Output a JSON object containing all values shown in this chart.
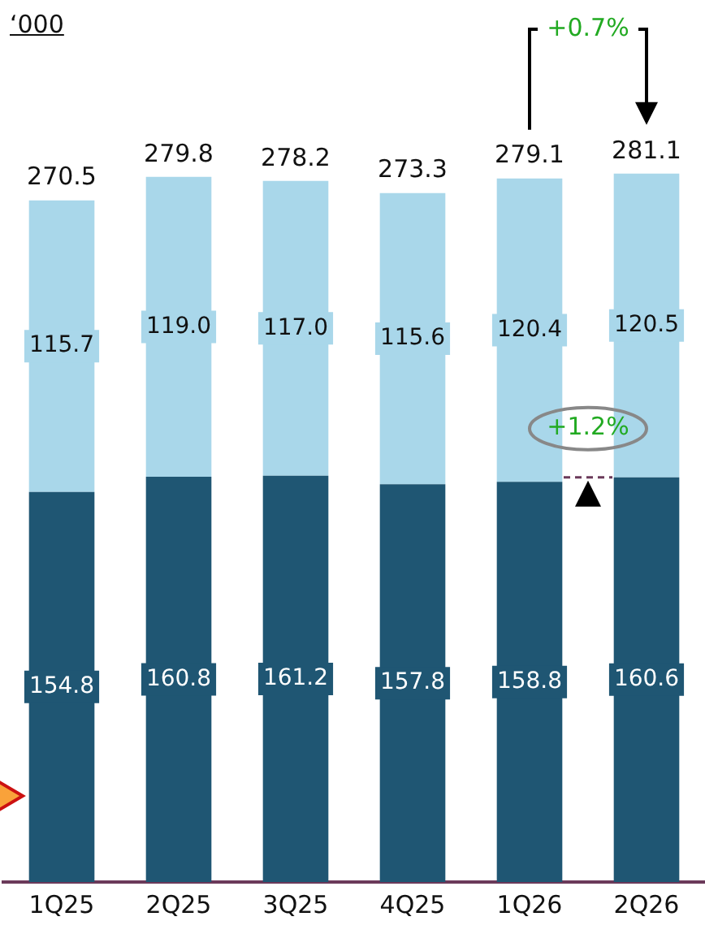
{
  "chart_data": {
    "type": "bar",
    "stacked": true,
    "categories": [
      "1Q25",
      "2Q25",
      "3Q25",
      "4Q25",
      "1Q26",
      "2Q26"
    ],
    "series": [
      {
        "color": "#1f5673",
        "values": [
          154.8,
          160.8,
          161.2,
          157.8,
          158.8,
          160.6
        ],
        "value_labels": [
          "154.8",
          "160.8",
          "161.2",
          "157.8",
          "158.8",
          "160.6"
        ]
      },
      {
        "color": "#a9d7ea",
        "values": [
          115.7,
          119.0,
          117.0,
          115.6,
          120.4,
          120.5
        ],
        "value_labels": [
          "115.7",
          "119.0",
          "117.0",
          "115.6",
          "120.4",
          "120.5"
        ]
      }
    ],
    "totals": [
      "270.5",
      "279.8",
      "278.2",
      "273.3",
      "279.1",
      "281.1"
    ],
    "annotations": [
      "‘000",
      "+0.7%",
      "+1.2%"
    ]
  }
}
